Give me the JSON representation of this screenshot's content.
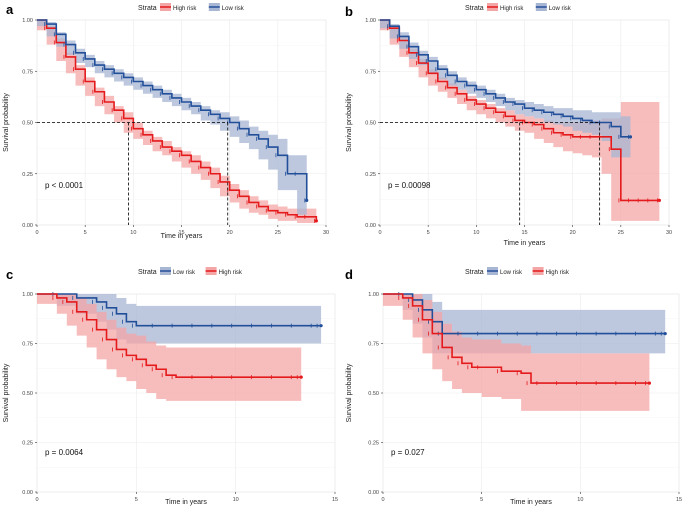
{
  "colors": {
    "high": "#e41a1c",
    "low": "#224f99",
    "high_fill": "#f4a6a6",
    "low_fill": "#a7b6d3"
  },
  "legend_title": "Strata",
  "chart_data": [
    {
      "panel": "a",
      "type": "line",
      "title": "",
      "xlabel": "Time in years",
      "ylabel": "Survival probability",
      "xlim": [
        0,
        30
      ],
      "ylim": [
        0,
        1
      ],
      "xticks": [
        0,
        5,
        10,
        15,
        20,
        25,
        30
      ],
      "xtick_labels": [
        "0",
        "5",
        "10",
        "15",
        "20",
        "25",
        "30"
      ],
      "yticks": [
        0,
        0.25,
        0.5,
        0.75,
        1
      ],
      "ytick_labels": [
        "0.00",
        "0.25",
        "0.50",
        "0.75",
        "1.00"
      ],
      "legend": [
        "High risk",
        "Low risk"
      ],
      "legend_position": "top-left",
      "pvalue": "p < 0.0001",
      "median_lines": [
        9.5,
        19.8
      ],
      "series": [
        {
          "name": "High risk",
          "color_key": "high",
          "x": [
            0,
            1,
            2,
            3,
            4,
            5,
            6,
            7,
            8,
            9,
            10,
            11,
            12,
            13,
            14,
            15,
            16,
            17,
            18,
            19,
            20,
            21,
            22,
            23,
            24,
            25,
            26,
            27,
            28,
            29
          ],
          "y": [
            1.0,
            0.96,
            0.89,
            0.82,
            0.76,
            0.7,
            0.65,
            0.6,
            0.56,
            0.52,
            0.47,
            0.44,
            0.41,
            0.38,
            0.36,
            0.34,
            0.31,
            0.28,
            0.25,
            0.21,
            0.17,
            0.14,
            0.11,
            0.09,
            0.07,
            0.06,
            0.05,
            0.04,
            0.04,
            0.02
          ],
          "lower": [
            1.0,
            0.95,
            0.88,
            0.8,
            0.74,
            0.68,
            0.63,
            0.58,
            0.54,
            0.5,
            0.45,
            0.42,
            0.39,
            0.36,
            0.34,
            0.31,
            0.28,
            0.25,
            0.22,
            0.18,
            0.14,
            0.11,
            0.08,
            0.06,
            0.05,
            0.03,
            0.02,
            0.02,
            0.01,
            0.01
          ],
          "upper": [
            1.0,
            0.97,
            0.91,
            0.84,
            0.78,
            0.72,
            0.67,
            0.63,
            0.58,
            0.55,
            0.5,
            0.46,
            0.43,
            0.41,
            0.38,
            0.36,
            0.34,
            0.31,
            0.28,
            0.24,
            0.2,
            0.17,
            0.14,
            0.12,
            0.1,
            0.09,
            0.08,
            0.08,
            0.08,
            0.08
          ]
        },
        {
          "name": "Low risk",
          "color_key": "low",
          "x": [
            0,
            1,
            2,
            3,
            4,
            5,
            6,
            7,
            8,
            9,
            10,
            11,
            12,
            13,
            14,
            15,
            16,
            17,
            18,
            19,
            20,
            21,
            22,
            23,
            24,
            25,
            26,
            27,
            28
          ],
          "y": [
            1.0,
            0.98,
            0.93,
            0.88,
            0.84,
            0.81,
            0.78,
            0.76,
            0.74,
            0.72,
            0.7,
            0.68,
            0.66,
            0.64,
            0.62,
            0.6,
            0.58,
            0.56,
            0.54,
            0.52,
            0.5,
            0.47,
            0.44,
            0.42,
            0.38,
            0.34,
            0.25,
            0.25,
            0.12
          ],
          "lower": [
            1.0,
            0.97,
            0.92,
            0.87,
            0.83,
            0.79,
            0.77,
            0.74,
            0.72,
            0.7,
            0.68,
            0.66,
            0.64,
            0.62,
            0.6,
            0.58,
            0.56,
            0.54,
            0.51,
            0.49,
            0.46,
            0.43,
            0.4,
            0.37,
            0.32,
            0.27,
            0.17,
            0.17,
            0.05
          ],
          "upper": [
            1.0,
            0.99,
            0.94,
            0.9,
            0.86,
            0.83,
            0.8,
            0.78,
            0.76,
            0.74,
            0.72,
            0.7,
            0.68,
            0.66,
            0.64,
            0.62,
            0.6,
            0.58,
            0.56,
            0.55,
            0.53,
            0.51,
            0.48,
            0.46,
            0.44,
            0.42,
            0.34,
            0.34,
            0.53
          ]
        }
      ]
    },
    {
      "panel": "b",
      "type": "line",
      "title": "",
      "xlabel": "Time in years",
      "ylabel": "Survival probability",
      "xlim": [
        0,
        30
      ],
      "ylim": [
        0,
        1
      ],
      "xticks": [
        0,
        5,
        10,
        15,
        20,
        25,
        30
      ],
      "xtick_labels": [
        "0",
        "5",
        "10",
        "15",
        "20",
        "25",
        "30"
      ],
      "yticks": [
        0,
        0.25,
        0.5,
        0.75,
        1
      ],
      "ytick_labels": [
        "0.00",
        "0.25",
        "0.50",
        "0.75",
        "1.00"
      ],
      "legend": [
        "High risk",
        "Low risk"
      ],
      "legend_position": "top-left",
      "pvalue": "p = 0.00098",
      "median_lines": [
        14.5,
        22.8
      ],
      "series": [
        {
          "name": "High risk",
          "color_key": "high",
          "x": [
            0,
            1,
            2,
            3,
            4,
            5,
            6,
            7,
            8,
            9,
            10,
            11,
            12,
            13,
            14,
            15,
            16,
            17,
            18,
            19,
            20,
            21,
            22,
            23,
            24,
            25,
            26,
            27,
            28,
            29
          ],
          "y": [
            1.0,
            0.96,
            0.9,
            0.84,
            0.79,
            0.74,
            0.7,
            0.67,
            0.64,
            0.61,
            0.59,
            0.57,
            0.55,
            0.53,
            0.51,
            0.5,
            0.49,
            0.47,
            0.45,
            0.44,
            0.43,
            0.43,
            0.43,
            0.43,
            0.37,
            0.12,
            0.12,
            0.12,
            0.12,
            0.12
          ],
          "lower": [
            1.0,
            0.95,
            0.88,
            0.82,
            0.77,
            0.72,
            0.68,
            0.65,
            0.62,
            0.59,
            0.56,
            0.54,
            0.52,
            0.5,
            0.48,
            0.46,
            0.45,
            0.42,
            0.4,
            0.38,
            0.36,
            0.35,
            0.34,
            0.33,
            0.25,
            0.02,
            0.02,
            0.02,
            0.02,
            0.02
          ],
          "upper": [
            1.0,
            0.97,
            0.92,
            0.86,
            0.81,
            0.76,
            0.72,
            0.69,
            0.66,
            0.63,
            0.61,
            0.59,
            0.57,
            0.56,
            0.54,
            0.53,
            0.52,
            0.51,
            0.5,
            0.5,
            0.5,
            0.51,
            0.51,
            0.52,
            0.52,
            0.6,
            0.6,
            0.6,
            0.6,
            0.6
          ]
        },
        {
          "name": "Low risk",
          "color_key": "low",
          "x": [
            0,
            1,
            2,
            3,
            4,
            5,
            6,
            7,
            8,
            9,
            10,
            11,
            12,
            13,
            14,
            15,
            16,
            17,
            18,
            19,
            20,
            21,
            22,
            23,
            24,
            25,
            26
          ],
          "y": [
            1.0,
            0.97,
            0.92,
            0.87,
            0.83,
            0.8,
            0.76,
            0.73,
            0.7,
            0.68,
            0.66,
            0.64,
            0.62,
            0.6,
            0.59,
            0.57,
            0.56,
            0.55,
            0.54,
            0.53,
            0.52,
            0.51,
            0.5,
            0.5,
            0.48,
            0.43,
            0.43
          ],
          "lower": [
            1.0,
            0.96,
            0.91,
            0.86,
            0.81,
            0.78,
            0.74,
            0.71,
            0.68,
            0.66,
            0.64,
            0.62,
            0.6,
            0.58,
            0.56,
            0.54,
            0.53,
            0.52,
            0.5,
            0.49,
            0.48,
            0.46,
            0.45,
            0.44,
            0.41,
            0.33,
            0.33
          ],
          "upper": [
            1.0,
            0.98,
            0.94,
            0.89,
            0.85,
            0.82,
            0.78,
            0.75,
            0.72,
            0.7,
            0.68,
            0.66,
            0.64,
            0.62,
            0.61,
            0.6,
            0.59,
            0.58,
            0.57,
            0.57,
            0.56,
            0.56,
            0.55,
            0.55,
            0.55,
            0.53,
            0.53
          ]
        }
      ]
    },
    {
      "panel": "c",
      "type": "line",
      "title": "",
      "xlabel": "Time in years",
      "ylabel": "Survival probability",
      "xlim": [
        0,
        15
      ],
      "ylim": [
        0,
        1
      ],
      "xticks": [
        0,
        5,
        10,
        15
      ],
      "xtick_labels": [
        "0",
        "5",
        "10",
        "15"
      ],
      "yticks": [
        0,
        0.25,
        0.5,
        0.75,
        1
      ],
      "ytick_labels": [
        "0.00",
        "0.25",
        "0.50",
        "0.75",
        "1.00"
      ],
      "legend": [
        "Low risk",
        "High risk"
      ],
      "legend_position": "top-left",
      "pvalue": "p = 0.0064",
      "median_lines": [],
      "series": [
        {
          "name": "Low risk",
          "color_key": "low",
          "x": [
            0,
            1,
            2,
            3,
            3.5,
            4,
            4.5,
            5,
            6,
            7,
            8,
            9,
            10,
            11,
            12,
            13,
            14,
            14.3
          ],
          "y": [
            1.0,
            1.0,
            0.98,
            0.96,
            0.93,
            0.9,
            0.86,
            0.84,
            0.84,
            0.84,
            0.84,
            0.84,
            0.84,
            0.84,
            0.84,
            0.84,
            0.84,
            0.84
          ],
          "lower": [
            1.0,
            1.0,
            0.94,
            0.9,
            0.86,
            0.82,
            0.77,
            0.75,
            0.75,
            0.75,
            0.75,
            0.75,
            0.75,
            0.75,
            0.75,
            0.75,
            0.75,
            0.75
          ],
          "upper": [
            1.0,
            1.0,
            1.0,
            1.0,
            1.0,
            0.98,
            0.95,
            0.94,
            0.94,
            0.94,
            0.94,
            0.94,
            0.94,
            0.94,
            0.94,
            0.94,
            0.94,
            0.94
          ]
        },
        {
          "name": "High risk",
          "color_key": "high",
          "x": [
            0,
            1,
            1.5,
            2,
            2.5,
            3,
            3.5,
            4,
            4.5,
            5,
            5.5,
            6,
            6.5,
            7,
            8,
            9,
            10,
            11,
            12,
            13,
            13.3
          ],
          "y": [
            1.0,
            0.98,
            0.96,
            0.91,
            0.87,
            0.82,
            0.77,
            0.72,
            0.69,
            0.67,
            0.64,
            0.62,
            0.59,
            0.58,
            0.58,
            0.58,
            0.58,
            0.58,
            0.58,
            0.58,
            0.58
          ],
          "lower": [
            1.0,
            0.95,
            0.9,
            0.84,
            0.79,
            0.73,
            0.67,
            0.62,
            0.58,
            0.56,
            0.52,
            0.5,
            0.47,
            0.46,
            0.46,
            0.46,
            0.46,
            0.46,
            0.46,
            0.46,
            0.46
          ],
          "upper": [
            1.0,
            1.0,
            1.0,
            0.98,
            0.95,
            0.91,
            0.87,
            0.83,
            0.8,
            0.79,
            0.76,
            0.74,
            0.73,
            0.73,
            0.73,
            0.73,
            0.73,
            0.73,
            0.73,
            0.73,
            0.73
          ]
        }
      ]
    },
    {
      "panel": "d",
      "type": "line",
      "title": "",
      "xlabel": "Time in years",
      "ylabel": "Survival probability",
      "xlim": [
        0,
        15
      ],
      "ylim": [
        0,
        1
      ],
      "xticks": [
        0,
        5,
        10,
        15
      ],
      "xtick_labels": [
        "0",
        "5",
        "10",
        "15"
      ],
      "yticks": [
        0,
        0.25,
        0.5,
        0.75,
        1
      ],
      "ytick_labels": [
        "0.00",
        "0.25",
        "0.50",
        "0.75",
        "1.00"
      ],
      "legend": [
        "Low risk",
        "High risk"
      ],
      "legend_position": "top-left",
      "pvalue": "p = 0.027",
      "median_lines": [],
      "series": [
        {
          "name": "Low risk",
          "color_key": "low",
          "x": [
            0,
            1,
            1.5,
            2,
            2.5,
            3,
            4,
            5,
            6,
            7,
            8,
            9,
            10,
            11,
            12,
            13,
            14,
            14.3
          ],
          "y": [
            1.0,
            1.0,
            0.97,
            0.92,
            0.86,
            0.8,
            0.8,
            0.8,
            0.8,
            0.8,
            0.8,
            0.8,
            0.8,
            0.8,
            0.8,
            0.8,
            0.8,
            0.8
          ],
          "lower": [
            1.0,
            1.0,
            0.92,
            0.85,
            0.78,
            0.7,
            0.7,
            0.7,
            0.7,
            0.7,
            0.7,
            0.7,
            0.7,
            0.7,
            0.7,
            0.7,
            0.7,
            0.7
          ],
          "upper": [
            1.0,
            1.0,
            1.0,
            1.0,
            0.96,
            0.92,
            0.92,
            0.92,
            0.92,
            0.92,
            0.92,
            0.92,
            0.92,
            0.92,
            0.92,
            0.92,
            0.92,
            0.92
          ]
        },
        {
          "name": "High risk",
          "color_key": "high",
          "x": [
            0,
            1,
            1.5,
            2,
            2.5,
            3,
            3.5,
            4,
            4.5,
            5,
            6,
            7,
            7.5,
            8,
            9,
            10,
            11,
            12,
            13,
            13.5
          ],
          "y": [
            1.0,
            0.98,
            0.94,
            0.87,
            0.8,
            0.73,
            0.68,
            0.65,
            0.63,
            0.63,
            0.61,
            0.6,
            0.55,
            0.55,
            0.55,
            0.55,
            0.55,
            0.55,
            0.55,
            0.55
          ],
          "lower": [
            1.0,
            0.94,
            0.87,
            0.78,
            0.7,
            0.62,
            0.56,
            0.52,
            0.5,
            0.5,
            0.48,
            0.47,
            0.41,
            0.41,
            0.41,
            0.41,
            0.41,
            0.41,
            0.41,
            0.41
          ],
          "upper": [
            1.0,
            1.0,
            1.0,
            0.97,
            0.91,
            0.85,
            0.81,
            0.78,
            0.77,
            0.77,
            0.75,
            0.74,
            0.7,
            0.7,
            0.7,
            0.7,
            0.7,
            0.7,
            0.7,
            0.7
          ]
        }
      ]
    }
  ]
}
